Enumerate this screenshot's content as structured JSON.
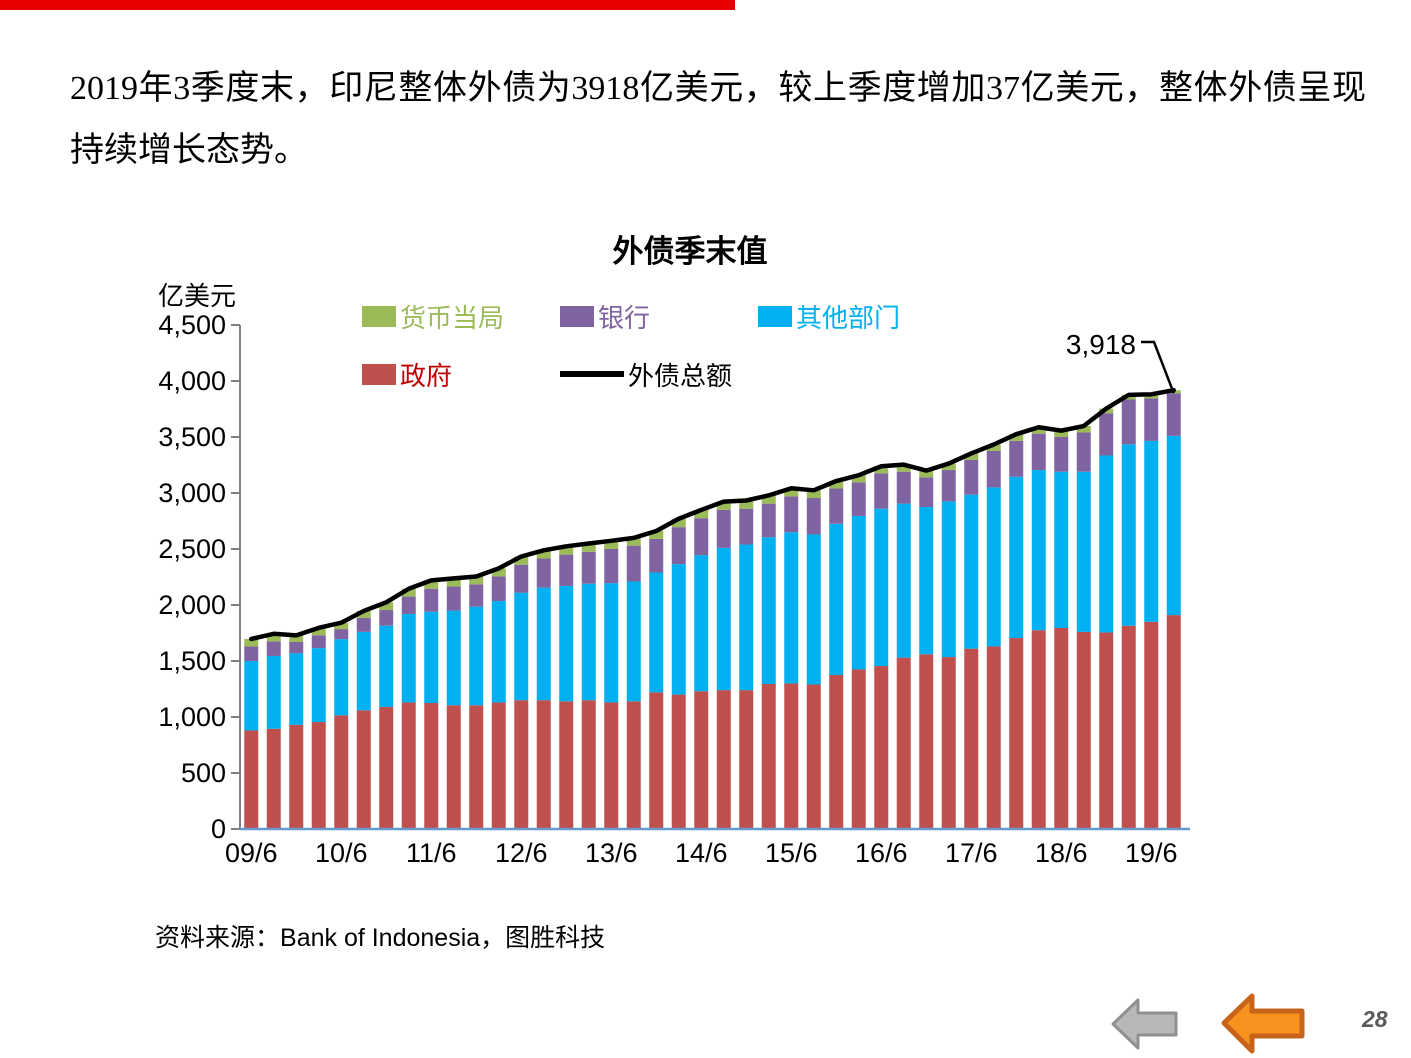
{
  "slide": {
    "top_bar_color": "#e80000",
    "paragraph": "2019年3季度末，印尼整体外债为3918亿美元，较上季度增加37亿美元，整体外债呈现持续增长态势。",
    "source": {
      "prefix": "资料来源：",
      "latin": "Bank of Indonesia",
      "suffix": "，图胜科技"
    },
    "page_number": "28",
    "nav": {
      "back_gray": "previous-slide",
      "back_orange": "previous-slide-highlight"
    }
  },
  "chart_data": {
    "type": "bar",
    "subtype": "stacked-bars-with-total-line",
    "title": "外债季末值",
    "unit_label": "亿美元",
    "ylim": [
      0,
      4500
    ],
    "y_ticks": [
      "0",
      "500",
      "1,000",
      "1,500",
      "2,000",
      "2,500",
      "3,000",
      "3,500",
      "4,000",
      "4,500"
    ],
    "y_tick_values": [
      0,
      500,
      1000,
      1500,
      2000,
      2500,
      3000,
      3500,
      4000,
      4500
    ],
    "grid": "off",
    "legend_position": "inside-top",
    "legend_rows": [
      [
        "货币当局",
        "银行",
        "其他部门"
      ],
      [
        "政府",
        "外债总额"
      ]
    ],
    "categories": [
      "09/6",
      "09/9",
      "09/12",
      "10/3",
      "10/6",
      "10/9",
      "10/12",
      "11/3",
      "11/6",
      "11/9",
      "11/12",
      "12/3",
      "12/6",
      "12/9",
      "12/12",
      "13/3",
      "13/6",
      "13/9",
      "13/12",
      "14/3",
      "14/6",
      "14/9",
      "14/12",
      "15/3",
      "15/6",
      "15/9",
      "15/12",
      "16/3",
      "16/6",
      "16/9",
      "16/12",
      "17/3",
      "17/6",
      "17/9",
      "17/12",
      "18/3",
      "18/6",
      "18/9",
      "18/12",
      "19/3",
      "19/6",
      "19/9"
    ],
    "x_tick_label_every": 4,
    "x_tick_labels_shown": [
      "09/6",
      "10/6",
      "11/6",
      "12/6",
      "13/6",
      "14/6",
      "15/6",
      "16/6",
      "17/6",
      "18/6",
      "19/6"
    ],
    "stack_order_bottom_to_top": [
      "政府",
      "其他部门",
      "银行",
      "货币当局"
    ],
    "series": [
      {
        "name": "政府",
        "kind": "bar",
        "color": "#C0504D",
        "label_color": "#C00000",
        "values": [
          880,
          895,
          930,
          955,
          1015,
          1060,
          1090,
          1130,
          1125,
          1105,
          1105,
          1130,
          1150,
          1150,
          1140,
          1150,
          1130,
          1140,
          1220,
          1200,
          1230,
          1240,
          1240,
          1295,
          1300,
          1290,
          1375,
          1425,
          1455,
          1530,
          1560,
          1535,
          1610,
          1630,
          1705,
          1775,
          1795,
          1760,
          1755,
          1815,
          1850,
          1910
        ]
      },
      {
        "name": "其他部门",
        "kind": "bar",
        "color": "#00B0F0",
        "label_color": "#00B0F0",
        "values": [
          620,
          650,
          640,
          660,
          680,
          700,
          725,
          790,
          815,
          845,
          880,
          905,
          960,
          1005,
          1030,
          1040,
          1065,
          1070,
          1070,
          1165,
          1215,
          1270,
          1300,
          1310,
          1350,
          1340,
          1350,
          1370,
          1405,
          1375,
          1315,
          1390,
          1375,
          1420,
          1440,
          1430,
          1395,
          1430,
          1580,
          1620,
          1615,
          1600
        ]
      },
      {
        "name": "银行",
        "kind": "bar",
        "color": "#8064A2",
        "label_color": "#8064A2",
        "values": [
          130,
          130,
          100,
          115,
          90,
          125,
          140,
          155,
          205,
          215,
          200,
          220,
          250,
          260,
          280,
          285,
          305,
          320,
          300,
          330,
          330,
          340,
          320,
          300,
          320,
          325,
          315,
          300,
          315,
          285,
          265,
          280,
          310,
          325,
          320,
          325,
          310,
          350,
          375,
          400,
          380,
          380
        ]
      },
      {
        "name": "货币当局",
        "kind": "bar",
        "color": "#9BBB59",
        "label_color": "#9BBB59",
        "values": [
          67,
          68,
          59,
          66,
          57,
          62,
          69,
          70,
          75,
          73,
          69,
          72,
          73,
          73,
          74,
          74,
          73,
          69,
          71,
          75,
          74,
          73,
          73,
          74,
          72,
          69,
          67,
          64,
          64,
          63,
          60,
          58,
          58,
          58,
          60,
          57,
          57,
          58,
          44,
          41,
          36,
          28
        ]
      },
      {
        "name": "外债总额",
        "kind": "line",
        "color": "#000000",
        "label_color": "#000000",
        "values": [
          1697,
          1743,
          1729,
          1796,
          1842,
          1947,
          2024,
          2145,
          2220,
          2238,
          2254,
          2327,
          2433,
          2488,
          2524,
          2549,
          2573,
          2599,
          2661,
          2770,
          2849,
          2923,
          2933,
          2979,
          3042,
          3024,
          3107,
          3159,
          3239,
          3253,
          3200,
          3263,
          3353,
          3433,
          3525,
          3587,
          3557,
          3598,
          3754,
          3876,
          3881,
          3918
        ]
      }
    ],
    "annotation": {
      "text": "3,918",
      "target_category": "19/9",
      "target_value": 3918
    },
    "axis_colors": {
      "baseline": "#6699CC",
      "axis": "#808080",
      "tick_label": "#000000"
    }
  }
}
